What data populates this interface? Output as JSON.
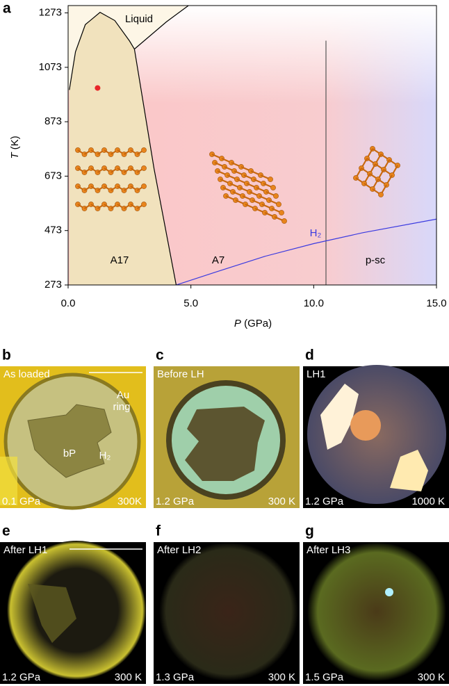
{
  "chart_data": {
    "type": "phase-diagram",
    "label": "a",
    "xlabel": {
      "symbol": "P",
      "unit": "(GPa)"
    },
    "ylabel": {
      "symbol": "T",
      "unit": "(K)"
    },
    "xlim": [
      0,
      15
    ],
    "ylim": [
      273,
      1300
    ],
    "xticks": [
      {
        "value": 0,
        "label": "0.0"
      },
      {
        "value": 5,
        "label": "5.0"
      },
      {
        "value": 10,
        "label": "10.0"
      },
      {
        "value": 15,
        "label": "15.0"
      }
    ],
    "yticks": [
      273,
      473,
      673,
      873,
      1073,
      1273
    ],
    "regions": [
      "Liquid",
      "A17",
      "A7",
      "p-sc"
    ],
    "boundaries": [
      {
        "color": "#000000",
        "x": [
          0.05,
          0.3,
          0.7,
          1.3,
          1.9,
          2.5,
          2.7
        ],
        "y": [
          990,
          1130,
          1230,
          1275,
          1245,
          1170,
          1140
        ]
      },
      {
        "color": "#000000",
        "x": [
          2.7,
          4.0,
          4.9
        ],
        "y": [
          1140,
          1240,
          1300
        ]
      },
      {
        "color": "#000000",
        "x": [
          2.7,
          3.5,
          4.4
        ],
        "y": [
          1140,
          700,
          273
        ]
      },
      {
        "color": "#555555",
        "x": [
          10.5,
          10.5
        ],
        "y": [
          273,
          1171
        ]
      },
      {
        "color": "#3a3ae0",
        "label": "H₂",
        "x": [
          4.4,
          6,
          8,
          10,
          12,
          15
        ],
        "y": [
          273,
          320,
          378,
          425,
          465,
          515
        ]
      }
    ],
    "point": {
      "x": 1.2,
      "y": 997,
      "color": "#e8262a"
    }
  },
  "micrographs": [
    {
      "label": "b",
      "caption": "As loaded",
      "pressure": "0.1 GPa",
      "temperature": "300K",
      "annotations": [
        "Au",
        "ring",
        "bP",
        "H₂"
      ]
    },
    {
      "label": "c",
      "caption": "Before LH",
      "pressure": "1.2 GPa",
      "temperature": "300 K"
    },
    {
      "label": "d",
      "caption": "LH1",
      "pressure": "1.2 GPa",
      "temperature": "1000 K"
    },
    {
      "label": "e",
      "caption": "After LH1",
      "pressure": "1.2 GPa",
      "temperature": "300 K"
    },
    {
      "label": "f",
      "caption": "After LH2",
      "pressure": "1.3 GPa",
      "temperature": "300 K"
    },
    {
      "label": "g",
      "caption": "After LH3",
      "pressure": "1.5 GPa",
      "temperature": "300 K"
    }
  ]
}
